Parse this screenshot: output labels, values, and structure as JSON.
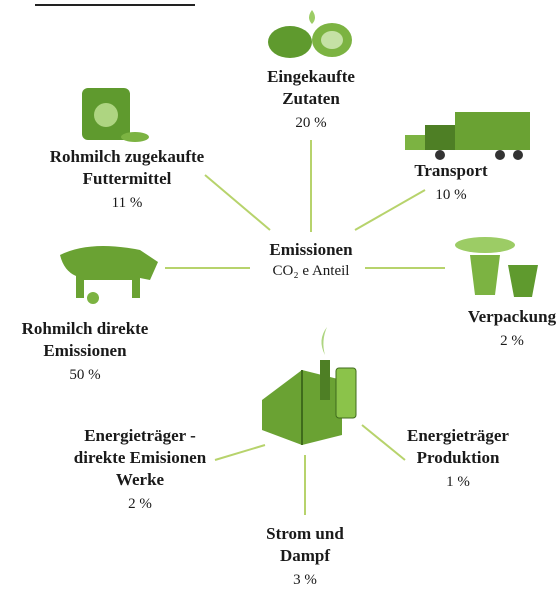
{
  "center": {
    "title": "Emissionen",
    "subtitle": "CO₂ e Anteil"
  },
  "nodes": [
    {
      "lines": [
        "Eingekaufte",
        "Zutaten"
      ],
      "share": "20 %"
    },
    {
      "lines": [
        "Transport"
      ],
      "share": "10 %"
    },
    {
      "lines": [
        "Verpackung"
      ],
      "share": "2 %"
    },
    {
      "lines": [
        "Energieträger",
        "Produktion"
      ],
      "share": "1 %"
    },
    {
      "lines": [
        "Strom und",
        "Dampf"
      ],
      "share": "3 %"
    },
    {
      "lines": [
        "Energieträger -",
        "direkte Emisionen",
        "Werke"
      ],
      "share": "2 %"
    },
    {
      "lines": [
        "Rohmilch direkte",
        "Emissionen"
      ],
      "share": "50 %"
    },
    {
      "lines": [
        "Rohmilch zugekaufte",
        "Futtermittel"
      ],
      "share": "11 %"
    }
  ]
}
